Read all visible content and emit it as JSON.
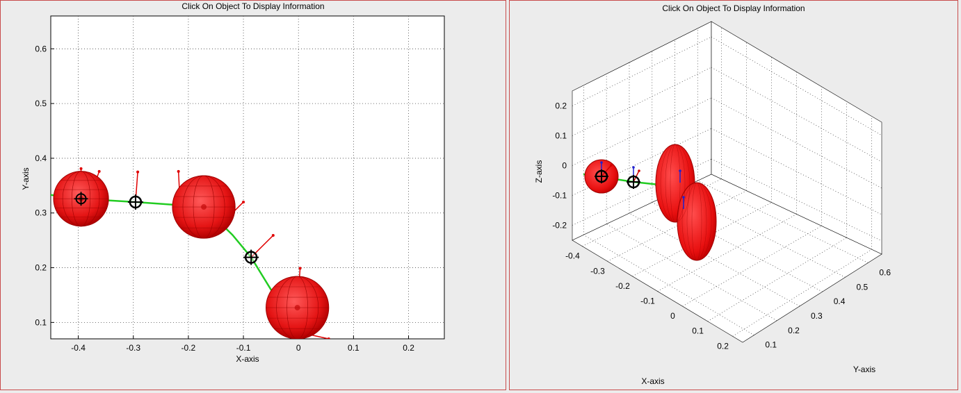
{
  "left_panel": {
    "title": "Click On Object To Display Information",
    "xlabel": "X-axis",
    "ylabel": "Y-axis"
  },
  "right_panel": {
    "title": "Click On Object To Display Information",
    "xlabel": "X-axis",
    "ylabel": "Y-axis",
    "zlabel": "Z-axis"
  },
  "colors": {
    "sphere": "#e01010",
    "link": "#22cc22",
    "frame_border": "#c84a4a"
  },
  "chart_data": [
    {
      "type": "scatter",
      "view": "2D top view (X-Y)",
      "title": "Click On Object To Display Information",
      "xlabel": "X-axis",
      "ylabel": "Y-axis",
      "xlim": [
        -0.45,
        0.265
      ],
      "ylim": [
        0.07,
        0.66
      ],
      "xticks": [
        -0.4,
        -0.3,
        -0.2,
        -0.1,
        0,
        0.1,
        0.2
      ],
      "xtick_labels": [
        "-0.4",
        "-0.3",
        "-0.2",
        "-0.1",
        "0",
        "0.1",
        "0.2"
      ],
      "yticks": [
        0.1,
        0.2,
        0.3,
        0.4,
        0.5,
        0.6
      ],
      "ytick_labels": [
        "0.1",
        "0.2",
        "0.3",
        "0.4",
        "0.5",
        "0.6"
      ],
      "grid": true,
      "spheres": [
        {
          "x": -0.395,
          "y": 0.326,
          "r": 0.05
        },
        {
          "x": -0.172,
          "y": 0.311,
          "r": 0.057
        },
        {
          "x": -0.002,
          "y": 0.127,
          "r": 0.057
        }
      ],
      "joints": [
        {
          "x": -0.296,
          "y": 0.32
        },
        {
          "x": -0.086,
          "y": 0.219
        }
      ],
      "links": [
        [
          -0.45,
          0.333
        ],
        [
          -0.395,
          0.326
        ],
        [
          -0.296,
          0.32
        ],
        [
          -0.172,
          0.311
        ],
        [
          -0.12,
          0.26
        ],
        [
          -0.086,
          0.219
        ],
        [
          -0.05,
          0.16
        ],
        [
          -0.002,
          0.127
        ]
      ],
      "markers": [
        {
          "x": -0.395,
          "y": 0.326,
          "dx": 0.0,
          "dy": 0.055
        },
        {
          "x": -0.38,
          "y": 0.326,
          "dx": 0.018,
          "dy": 0.05
        },
        {
          "x": -0.296,
          "y": 0.32,
          "dx": 0.004,
          "dy": 0.055
        },
        {
          "x": -0.215,
          "y": 0.316,
          "dx": -0.003,
          "dy": 0.06
        },
        {
          "x": -0.13,
          "y": 0.29,
          "dx": 0.03,
          "dy": 0.03
        },
        {
          "x": -0.086,
          "y": 0.219,
          "dx": 0.04,
          "dy": 0.04
        },
        {
          "x": -0.002,
          "y": 0.127,
          "dx": 0.005,
          "dy": 0.072
        },
        {
          "x": 0.01,
          "y": 0.08,
          "dx": 0.045,
          "dy": -0.01
        }
      ]
    },
    {
      "type": "scatter",
      "view": "3D perspective",
      "title": "Click On Object To Display Information",
      "xlabel": "X-axis",
      "ylabel": "Y-axis",
      "zlabel": "Z-axis",
      "xticks": [
        -0.4,
        -0.3,
        -0.2,
        -0.1,
        0,
        0.1,
        0.2
      ],
      "xtick_labels": [
        "-0.4",
        "-0.3",
        "-0.2",
        "-0.1",
        "0",
        "0.1",
        "0.2"
      ],
      "yticks": [
        0.1,
        0.2,
        0.3,
        0.4,
        0.5,
        0.6
      ],
      "ytick_labels": [
        "0.1",
        "0.2",
        "0.3",
        "0.4",
        "0.5",
        "0.6"
      ],
      "zticks": [
        0.2,
        0.1,
        0,
        -0.1,
        -0.2
      ],
      "ztick_labels": [
        "0.2",
        "0.1",
        "0",
        "-0.1",
        "-0.2"
      ],
      "grid": true
    }
  ]
}
